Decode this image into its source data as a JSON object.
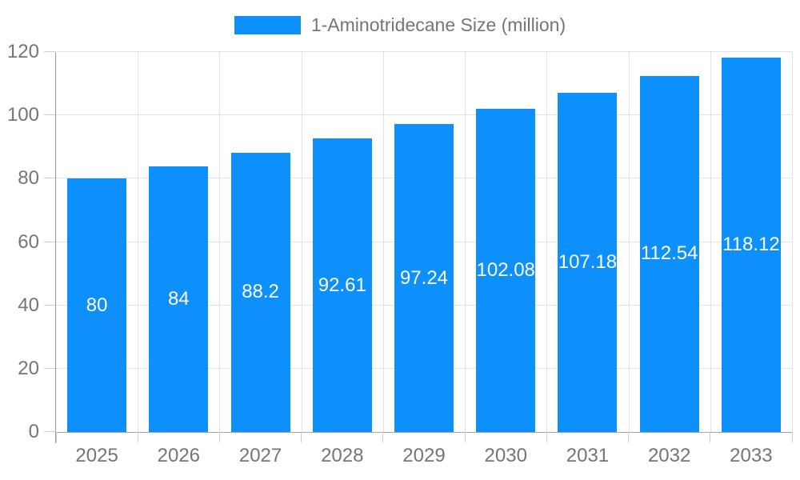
{
  "chart_data": {
    "type": "bar",
    "categories": [
      "2025",
      "2026",
      "2027",
      "2028",
      "2029",
      "2030",
      "2031",
      "2032",
      "2033"
    ],
    "series": [
      {
        "name": "1-Aminotridecane Size (million)",
        "values": [
          80,
          84,
          88.2,
          92.61,
          97.24,
          102.08,
          107.18,
          112.54,
          118.12
        ]
      }
    ],
    "legend": [
      "1-Aminotridecane Size (million)"
    ],
    "xlabel": "",
    "ylabel": "",
    "ylim": [
      0,
      120
    ],
    "yticks": [
      0,
      20,
      40,
      60,
      80,
      100,
      120
    ],
    "grid": true,
    "legend_position": "top-center",
    "bar_color": "#0d90fb",
    "value_label_color": "#ffffff",
    "axis_text_color": "#757575",
    "grid_color": "#e3e3e3",
    "axis_line_color": "#999999"
  }
}
